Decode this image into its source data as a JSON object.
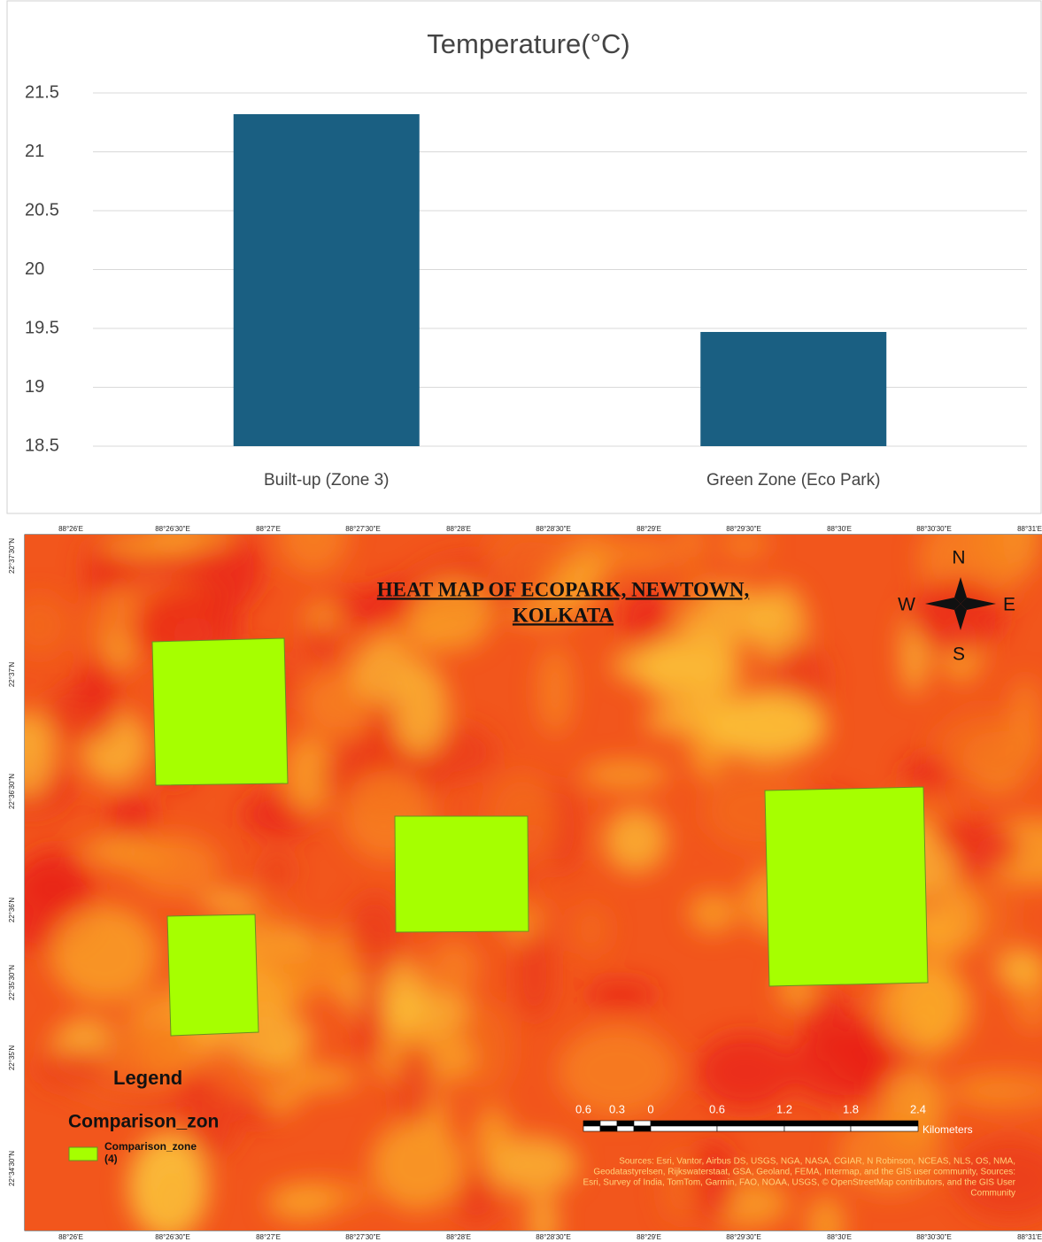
{
  "chart_data": {
    "type": "bar",
    "title": "Temperature(°C)",
    "categories": [
      "Built-up (Zone 3)",
      "Green Zone (Eco Park)"
    ],
    "values": [
      21.32,
      19.47
    ],
    "color": "#1a5f82",
    "ylim": [
      18.5,
      21.5
    ],
    "yticks": [
      18.5,
      19,
      19.5,
      20,
      20.5,
      21,
      21.5
    ],
    "grid": true
  },
  "map": {
    "title_lines": [
      "HEAT MAP OF ECOPARK, NEWTOWN,",
      "KOLKATA"
    ],
    "compass": {
      "n": "N",
      "s": "S",
      "e": "E",
      "w": "W"
    },
    "longitudes": [
      "88°26'E",
      "88°26'30\"E",
      "88°27'E",
      "88°27'30\"E",
      "88°28'E",
      "88°28'30\"E",
      "88°29'E",
      "88°29'30\"E",
      "88°30'E",
      "88°30'30\"E",
      "88°31'E"
    ],
    "latitudes": [
      "22°37'30\"N",
      "22°37'N",
      "22°36'30\"N",
      "22°36'N",
      "22°35'30\"N",
      "22°35'N",
      "22°34'30\"N"
    ],
    "legend": {
      "title": "Legend",
      "layer": "Comparison_zon",
      "item_lines": [
        "Comparison_zone",
        "(4)"
      ]
    },
    "scale": {
      "labels": [
        "0.6",
        "0.3",
        "0",
        "0.6",
        "1.2",
        "1.8",
        "2.4"
      ],
      "unit": "Kilometers"
    },
    "sources_lines": [
      "Sources: Esri, Vantor, Airbus DS, USGS, NGA, NASA, CGIAR, N Robinson, NCEAS, NLS, OS, NMA,",
      "Geodatastyrelsen, Rijkswaterstaat, GSA, Geoland, FEMA, Intermap, and the GIS user community, Sources:",
      "Esri, Survey of India, TomTom, Garmin, FAO, NOAA, USGS, © OpenStreetMap contributors, and the GIS User",
      "Community"
    ]
  }
}
